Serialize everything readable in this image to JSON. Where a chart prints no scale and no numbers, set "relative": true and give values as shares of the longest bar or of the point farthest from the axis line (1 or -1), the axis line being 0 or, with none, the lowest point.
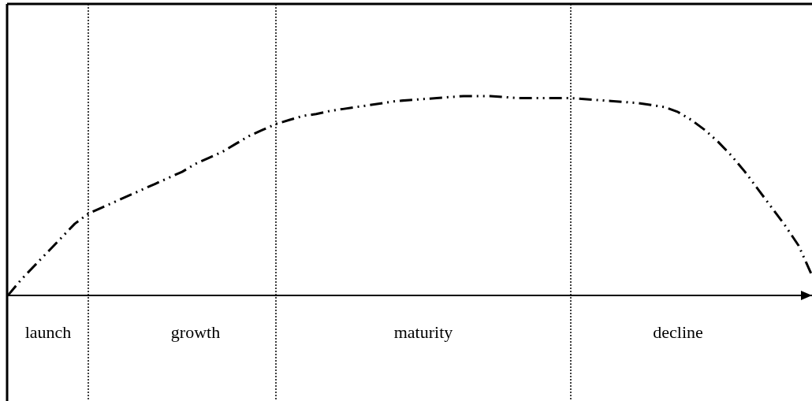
{
  "chart_data": {
    "type": "line",
    "relative": true,
    "tick_labels": "x",
    "marker": "none",
    "line_style": "dashed",
    "categories": [
      null,
      null,
      null,
      "launch",
      null,
      null,
      null,
      null,
      null,
      null,
      null,
      null,
      null,
      null,
      "growth",
      null,
      null,
      null,
      null,
      null,
      null,
      null,
      null,
      null,
      null,
      null,
      null,
      null,
      null,
      null,
      null,
      "maturity",
      null,
      null,
      null,
      null,
      null,
      null,
      null,
      null,
      null,
      null,
      null,
      null,
      null,
      null,
      null,
      null,
      null,
      null,
      "decline",
      null,
      null,
      null,
      null,
      null,
      null,
      null,
      null,
      null,
      null
    ],
    "series": [
      {
        "color": "#000000",
        "values": [
          0,
          0.08,
          0.15,
          0.22,
          0.29,
          0.36,
          0.41,
          0.44,
          0.47,
          0.5,
          0.53,
          0.56,
          0.59,
          0.62,
          0.66,
          0.69,
          0.72,
          0.76,
          0.8,
          0.83,
          0.86,
          0.88,
          0.9,
          0.91,
          0.925,
          0.935,
          0.945,
          0.955,
          0.965,
          0.975,
          0.98,
          0.985,
          0.99,
          0.995,
          1,
          1,
          1,
          0.995,
          0.99,
          0.99,
          0.99,
          0.99,
          0.99,
          0.985,
          0.98,
          0.975,
          0.97,
          0.965,
          0.955,
          0.945,
          0.92,
          0.88,
          0.83,
          0.77,
          0.7,
          0.62,
          0.53,
          0.44,
          0.35,
          0.25,
          0.1
        ]
      }
    ],
    "grid": "x"
  }
}
